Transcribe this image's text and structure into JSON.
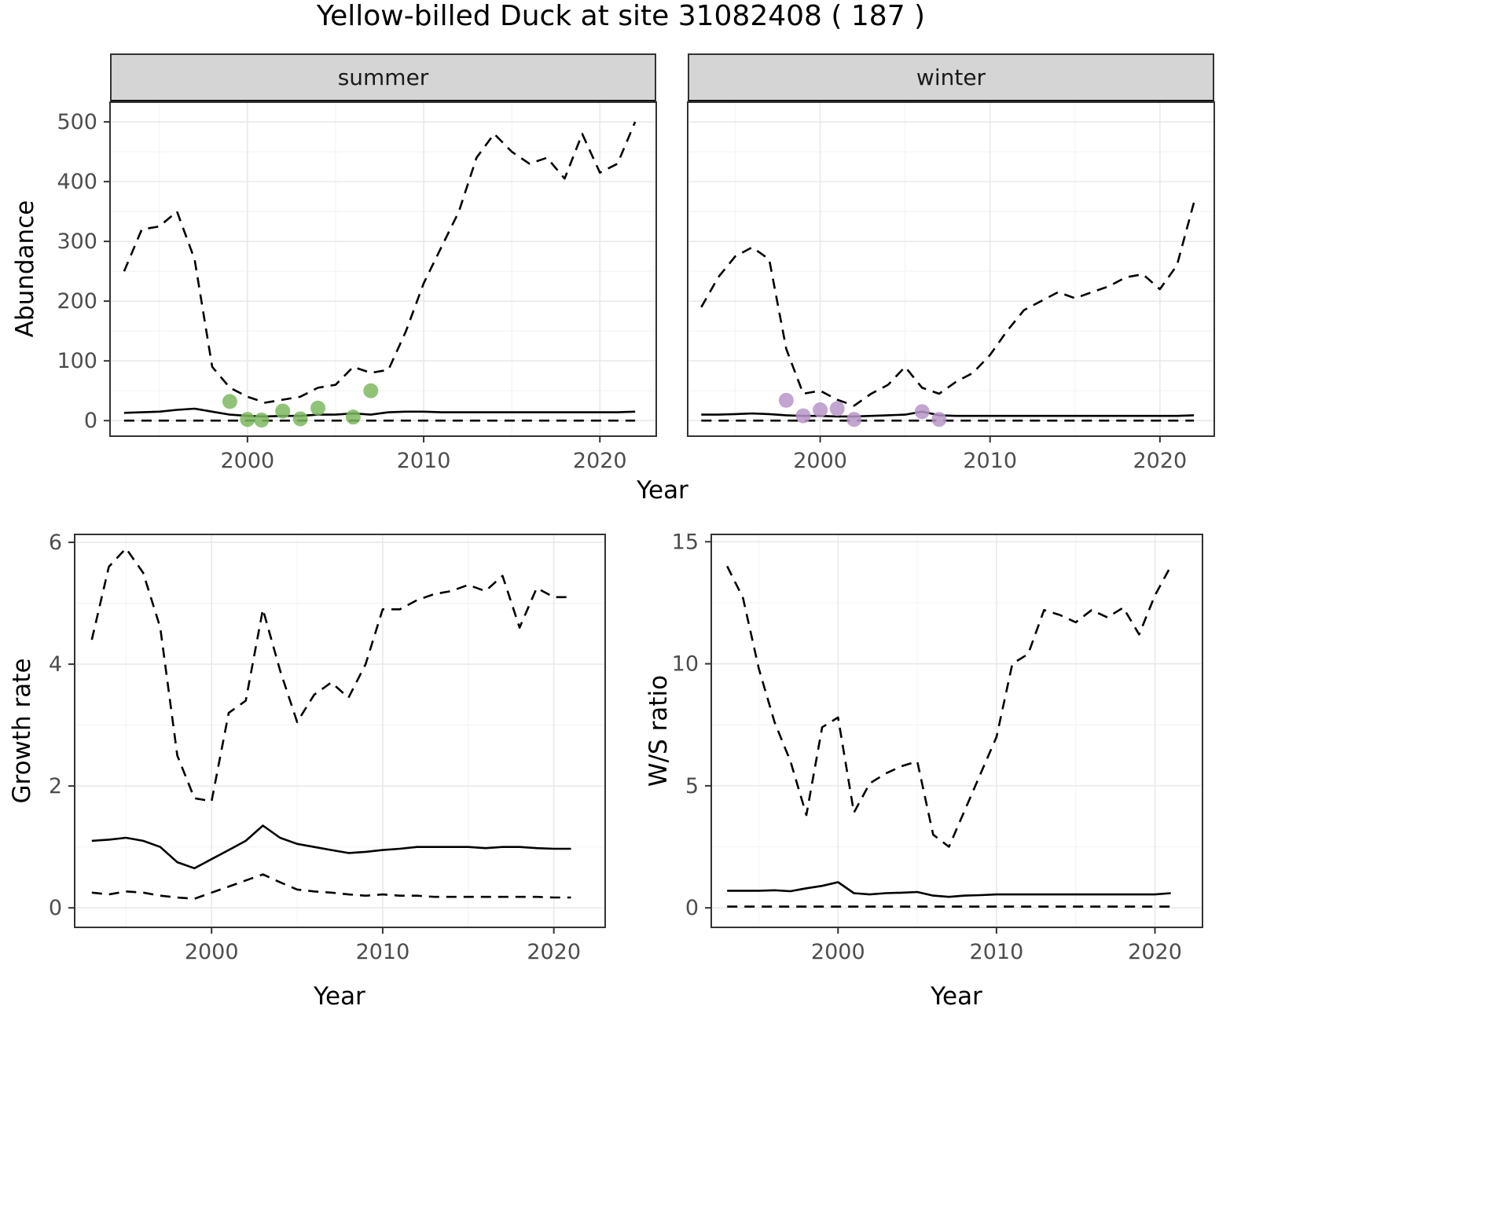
{
  "title": "Yellow-billed Duck at site 31082408 ( 187 )",
  "facets": {
    "summer": "summer",
    "winter": "winter"
  },
  "axis_labels": {
    "abundance": "Abundance",
    "year": "Year",
    "growth_rate": "Growth rate",
    "ws_ratio": "W/S ratio"
  },
  "colors": {
    "line": "#000000",
    "grid_major": "#e9e9e9",
    "grid_minor": "#f4f4f4",
    "panel_border": "#333333",
    "tick_mark": "#333333",
    "tick_label": "#4d4d4d",
    "strip_bg": "#d5d5d5",
    "summer_point": "#7cb95f",
    "winter_point": "#b795c8"
  },
  "chart_data": [
    {
      "id": "abundance-summer",
      "type": "line",
      "facet": "summer",
      "xlabel": "Year",
      "ylabel": "Abundance",
      "xlim": [
        1992.2,
        2023.2
      ],
      "ylim": [
        -26,
        533
      ],
      "xticks": [
        2000,
        2010,
        2020
      ],
      "yticks": [
        0,
        100,
        200,
        300,
        400,
        500
      ],
      "xminor": [
        1995,
        2005,
        2015
      ],
      "yminor": [
        50,
        150,
        250,
        350,
        450
      ],
      "show_yticklabels": true,
      "x": [
        1993,
        1994,
        1995,
        1996,
        1997,
        1998,
        1999,
        2000,
        2001,
        2002,
        2003,
        2004,
        2005,
        2006,
        2007,
        2008,
        2009,
        2010,
        2011,
        2012,
        2013,
        2014,
        2015,
        2016,
        2017,
        2018,
        2019,
        2020,
        2021,
        2022
      ],
      "series": [
        {
          "name": "upper-ci",
          "linestyle": "dashed",
          "values": [
            250,
            320,
            325,
            350,
            270,
            90,
            55,
            40,
            30,
            35,
            40,
            55,
            60,
            90,
            80,
            85,
            150,
            230,
            290,
            350,
            440,
            480,
            450,
            430,
            440,
            405,
            480,
            415,
            430,
            500
          ]
        },
        {
          "name": "median",
          "linestyle": "solid",
          "values": [
            13,
            14,
            15,
            18,
            20,
            15,
            10,
            8,
            7,
            8,
            8,
            10,
            10,
            12,
            10,
            14,
            15,
            15,
            14,
            14,
            14,
            14,
            14,
            14,
            14,
            14,
            14,
            14,
            14,
            15
          ]
        },
        {
          "name": "lower-ci",
          "linestyle": "dashed",
          "values": [
            0,
            0,
            0,
            0,
            0,
            0,
            0,
            0,
            0,
            0,
            0,
            0,
            0,
            0,
            0,
            0,
            0,
            0,
            0,
            0,
            0,
            0,
            0,
            0,
            0,
            0,
            0,
            0,
            0,
            0
          ]
        }
      ],
      "points": {
        "name": "observed-counts-summer",
        "color": "#7cb95f",
        "x": [
          1999,
          2000,
          2000.8,
          2002,
          2003,
          2004,
          2006,
          2007
        ],
        "y": [
          32,
          2,
          1,
          16,
          3,
          21,
          6,
          50
        ]
      }
    },
    {
      "id": "abundance-winter",
      "type": "line",
      "facet": "winter",
      "xlabel": "Year",
      "ylabel": "Abundance",
      "xlim": [
        1992.2,
        2023.2
      ],
      "ylim": [
        -26,
        533
      ],
      "xticks": [
        2000,
        2010,
        2020
      ],
      "yticks": [
        0,
        100,
        200,
        300,
        400,
        500
      ],
      "xminor": [
        1995,
        2005,
        2015
      ],
      "yminor": [
        50,
        150,
        250,
        350,
        450
      ],
      "show_yticklabels": false,
      "x": [
        1993,
        1994,
        1995,
        1996,
        1997,
        1998,
        1999,
        2000,
        2001,
        2002,
        2003,
        2004,
        2005,
        2006,
        2007,
        2008,
        2009,
        2010,
        2011,
        2012,
        2013,
        2014,
        2015,
        2016,
        2017,
        2018,
        2019,
        2020,
        2021,
        2022
      ],
      "series": [
        {
          "name": "upper-ci",
          "linestyle": "dashed",
          "values": [
            190,
            240,
            275,
            290,
            270,
            120,
            45,
            50,
            35,
            25,
            45,
            60,
            90,
            55,
            45,
            65,
            80,
            110,
            150,
            185,
            200,
            215,
            205,
            215,
            225,
            240,
            245,
            220,
            260,
            365
          ]
        },
        {
          "name": "median",
          "linestyle": "solid",
          "values": [
            10,
            10,
            11,
            12,
            11,
            9,
            8,
            8,
            7,
            7,
            8,
            9,
            10,
            15,
            9,
            8,
            8,
            8,
            8,
            8,
            8,
            8,
            8,
            8,
            8,
            8,
            8,
            8,
            8,
            9
          ]
        },
        {
          "name": "lower-ci",
          "linestyle": "dashed",
          "values": [
            0,
            0,
            0,
            0,
            0,
            0,
            0,
            0,
            0,
            0,
            0,
            0,
            0,
            0,
            0,
            0,
            0,
            0,
            0,
            0,
            0,
            0,
            0,
            0,
            0,
            0,
            0,
            0,
            0,
            0
          ]
        }
      ],
      "points": {
        "name": "observed-counts-winter",
        "color": "#b795c8",
        "x": [
          1998,
          1999,
          2000,
          2001,
          2002,
          2006,
          2007
        ],
        "y": [
          34,
          8,
          18,
          20,
          2,
          15,
          2
        ]
      }
    },
    {
      "id": "growth-rate",
      "type": "line",
      "xlabel": "Year",
      "ylabel": "Growth rate",
      "xlim": [
        1992,
        2023
      ],
      "ylim": [
        -0.32,
        6.13
      ],
      "xticks": [
        2000,
        2010,
        2020
      ],
      "yticks": [
        0,
        2,
        4,
        6
      ],
      "xminor": [
        1995,
        2005,
        2015
      ],
      "yminor": [
        1,
        3,
        5
      ],
      "show_yticklabels": true,
      "x": [
        1993,
        1994,
        1995,
        1996,
        1997,
        1998,
        1999,
        2000,
        2001,
        2002,
        2003,
        2004,
        2005,
        2006,
        2007,
        2008,
        2009,
        2010,
        2011,
        2012,
        2013,
        2014,
        2015,
        2016,
        2017,
        2018,
        2019,
        2020,
        2021
      ],
      "series": [
        {
          "name": "upper-ci",
          "linestyle": "dashed",
          "values": [
            4.4,
            5.6,
            5.9,
            5.5,
            4.6,
            2.5,
            1.8,
            1.75,
            3.2,
            3.4,
            4.9,
            3.9,
            3.05,
            3.5,
            3.7,
            3.45,
            4.0,
            4.9,
            4.9,
            5.05,
            5.15,
            5.2,
            5.3,
            5.2,
            5.45,
            4.6,
            5.25,
            5.1,
            5.1
          ]
        },
        {
          "name": "median",
          "linestyle": "solid",
          "values": [
            1.1,
            1.12,
            1.15,
            1.1,
            1.0,
            0.75,
            0.65,
            0.8,
            0.95,
            1.1,
            1.35,
            1.15,
            1.05,
            1.0,
            0.95,
            0.9,
            0.92,
            0.95,
            0.97,
            1.0,
            1.0,
            1.0,
            1.0,
            0.98,
            1.0,
            1.0,
            0.98,
            0.97,
            0.97
          ]
        },
        {
          "name": "lower-ci",
          "linestyle": "dashed",
          "values": [
            0.25,
            0.22,
            0.27,
            0.25,
            0.2,
            0.17,
            0.15,
            0.25,
            0.35,
            0.45,
            0.55,
            0.42,
            0.3,
            0.27,
            0.25,
            0.22,
            0.2,
            0.22,
            0.2,
            0.2,
            0.18,
            0.18,
            0.18,
            0.18,
            0.18,
            0.18,
            0.18,
            0.17,
            0.17
          ]
        }
      ]
    },
    {
      "id": "ws-ratio",
      "type": "line",
      "xlabel": "Year",
      "ylabel": "W/S ratio",
      "xlim": [
        1992,
        2023
      ],
      "ylim": [
        -0.8,
        15.3
      ],
      "xticks": [
        2000,
        2010,
        2020
      ],
      "yticks": [
        0,
        5,
        10,
        15
      ],
      "xminor": [
        1995,
        2005,
        2015
      ],
      "yminor": [
        2.5,
        7.5,
        12.5
      ],
      "show_yticklabels": true,
      "x": [
        1993,
        1994,
        1995,
        1996,
        1997,
        1998,
        1999,
        2000,
        2001,
        2002,
        2003,
        2004,
        2005,
        2006,
        2007,
        2008,
        2009,
        2010,
        2011,
        2012,
        2013,
        2014,
        2015,
        2016,
        2017,
        2018,
        2019,
        2020,
        2021
      ],
      "series": [
        {
          "name": "upper-ci",
          "linestyle": "dashed",
          "values": [
            14.0,
            12.7,
            9.8,
            7.6,
            6.0,
            3.8,
            7.4,
            7.8,
            3.9,
            5.1,
            5.5,
            5.8,
            6.0,
            3.0,
            2.5,
            4.0,
            5.5,
            7.0,
            10.0,
            10.4,
            12.2,
            12.0,
            11.7,
            12.2,
            11.9,
            12.3,
            11.2,
            12.8,
            14.0
          ]
        },
        {
          "name": "median",
          "linestyle": "solid",
          "values": [
            0.7,
            0.7,
            0.7,
            0.72,
            0.68,
            0.8,
            0.9,
            1.05,
            0.6,
            0.55,
            0.6,
            0.62,
            0.65,
            0.5,
            0.45,
            0.5,
            0.52,
            0.55,
            0.55,
            0.55,
            0.55,
            0.55,
            0.55,
            0.55,
            0.55,
            0.55,
            0.55,
            0.55,
            0.6
          ]
        },
        {
          "name": "lower-ci",
          "linestyle": "dashed",
          "values": [
            0.05,
            0.05,
            0.05,
            0.05,
            0.05,
            0.05,
            0.05,
            0.05,
            0.05,
            0.05,
            0.05,
            0.05,
            0.05,
            0.05,
            0.05,
            0.05,
            0.05,
            0.05,
            0.05,
            0.05,
            0.05,
            0.05,
            0.05,
            0.05,
            0.05,
            0.05,
            0.05,
            0.05,
            0.05
          ]
        }
      ]
    }
  ]
}
